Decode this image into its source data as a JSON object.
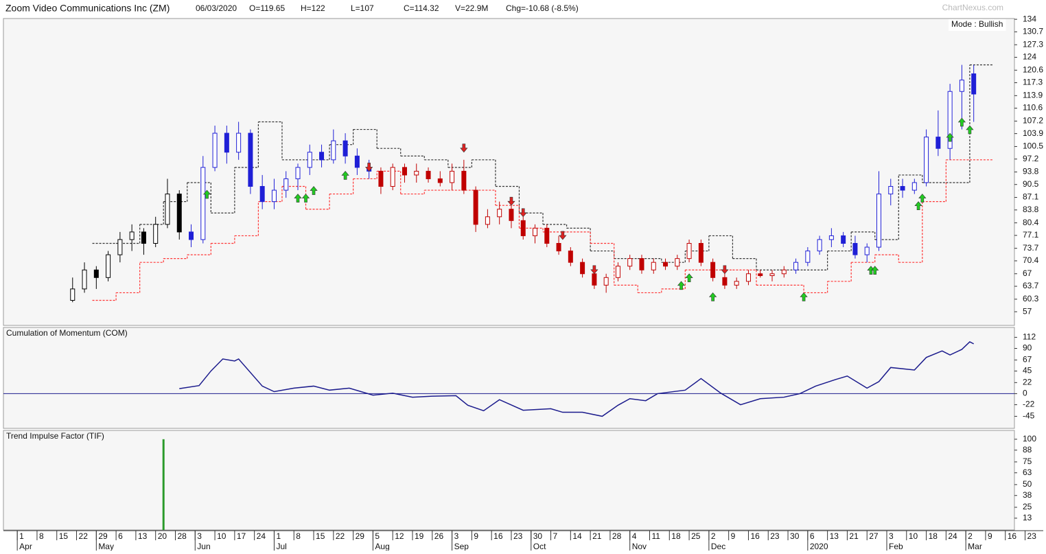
{
  "header": {
    "title": "Zoom Video Communications Inc (ZM)",
    "fields": [
      "06/03/2020",
      "O=119.65",
      "H=122",
      "L=107",
      "C=114.32",
      "V=22.9M",
      "Chg=-10.68 (-8.5%)"
    ],
    "watermark": "ChartNexus.com"
  },
  "x_axis": {
    "xlim": [
      -3.5,
      252.3
    ],
    "xticks": [
      {
        "value": 0,
        "label": "1"
      },
      {
        "value": 5,
        "label": "8"
      },
      {
        "value": 10,
        "label": "15"
      },
      {
        "value": 15,
        "label": "22"
      },
      {
        "value": 20,
        "label": "29"
      },
      {
        "value": 25,
        "label": "6"
      },
      {
        "value": 30,
        "label": "13"
      },
      {
        "value": 35,
        "label": "20"
      },
      {
        "value": 40,
        "label": "28"
      },
      {
        "value": 45,
        "label": "3"
      },
      {
        "value": 50,
        "label": "10"
      },
      {
        "value": 55,
        "label": "17"
      },
      {
        "value": 60,
        "label": "24"
      },
      {
        "value": 65,
        "label": "1"
      },
      {
        "value": 70,
        "label": "8"
      },
      {
        "value": 75,
        "label": "15"
      },
      {
        "value": 80,
        "label": "22"
      },
      {
        "value": 85,
        "label": "29"
      },
      {
        "value": 90,
        "label": "5"
      },
      {
        "value": 95,
        "label": "12"
      },
      {
        "value": 100,
        "label": "19"
      },
      {
        "value": 105,
        "label": "26"
      },
      {
        "value": 110,
        "label": "3"
      },
      {
        "value": 115,
        "label": "9"
      },
      {
        "value": 120,
        "label": "16"
      },
      {
        "value": 125,
        "label": "23"
      },
      {
        "value": 130,
        "label": "30"
      },
      {
        "value": 135,
        "label": "7"
      },
      {
        "value": 140,
        "label": "14"
      },
      {
        "value": 145,
        "label": "21"
      },
      {
        "value": 150,
        "label": "28"
      },
      {
        "value": 155,
        "label": "4"
      },
      {
        "value": 160,
        "label": "11"
      },
      {
        "value": 165,
        "label": "18"
      },
      {
        "value": 170,
        "label": "25"
      },
      {
        "value": 175,
        "label": "2"
      },
      {
        "value": 180,
        "label": "9"
      },
      {
        "value": 185,
        "label": "16"
      },
      {
        "value": 190,
        "label": "23"
      },
      {
        "value": 195,
        "label": "30"
      },
      {
        "value": 200,
        "label": "6"
      },
      {
        "value": 205,
        "label": "13"
      },
      {
        "value": 210,
        "label": "21"
      },
      {
        "value": 215,
        "label": "27"
      },
      {
        "value": 220,
        "label": "3"
      },
      {
        "value": 225,
        "label": "10"
      },
      {
        "value": 230,
        "label": "18"
      },
      {
        "value": 235,
        "label": "24"
      },
      {
        "value": 240,
        "label": "2"
      },
      {
        "value": 245,
        "label": "9"
      },
      {
        "value": 250,
        "label": "16"
      },
      {
        "value": 255,
        "label": "23"
      }
    ],
    "month_ticks": [
      {
        "value": 0,
        "label": "Apr"
      },
      {
        "value": 20,
        "label": "May"
      },
      {
        "value": 45,
        "label": "Jun"
      },
      {
        "value": 65,
        "label": "Jul"
      },
      {
        "value": 90,
        "label": "Aug"
      },
      {
        "value": 110,
        "label": "Sep"
      },
      {
        "value": 130,
        "label": "Oct"
      },
      {
        "value": 155,
        "label": "Nov"
      },
      {
        "value": 175,
        "label": "Dec"
      },
      {
        "value": 200,
        "label": "2020"
      },
      {
        "value": 220,
        "label": "Feb"
      },
      {
        "value": 240,
        "label": "Mar"
      }
    ]
  },
  "chart_data": [
    {
      "type": "candlestick",
      "mode_label": "Mode : Bullish",
      "ylim": [
        53.4,
        134.2
      ],
      "yticks": [
        134,
        130.7,
        127.3,
        124,
        120.6,
        117.3,
        113.9,
        110.6,
        107.2,
        103.9,
        100.5,
        97.2,
        93.8,
        90.5,
        87.1,
        83.8,
        80.4,
        77.1,
        73.7,
        70.4,
        67,
        63.7,
        60.3,
        57
      ],
      "series": [
        {
          "color": "#000000",
          "x": [
            14,
            17,
            20,
            23,
            26,
            29,
            32,
            35,
            38,
            41
          ],
          "open": [
            60,
            63,
            68,
            66,
            72,
            76,
            78,
            75,
            80,
            88
          ],
          "high": [
            66,
            70,
            69,
            73,
            78,
            80,
            79,
            82,
            92,
            89
          ],
          "low": [
            59.5,
            62,
            63,
            65,
            70,
            73,
            72,
            74,
            79,
            76
          ],
          "close": [
            63,
            68,
            66,
            72,
            76,
            78,
            75,
            80,
            88,
            78
          ]
        },
        {
          "color": "#1f1fd6",
          "x": [
            44,
            47,
            50,
            53,
            56,
            59,
            62,
            65,
            68,
            71,
            74,
            77,
            80,
            83,
            86,
            89,
            197,
            200,
            203,
            206,
            209,
            212,
            215,
            218,
            221,
            224,
            227,
            230,
            233,
            236,
            239,
            242
          ],
          "open": [
            78,
            76,
            95,
            104,
            99,
            104,
            90,
            86,
            89,
            92,
            95,
            99,
            97,
            102,
            98,
            95,
            68,
            70,
            73,
            76,
            77,
            75,
            72,
            74,
            88,
            90,
            89,
            91,
            103,
            100,
            115,
            119.65
          ],
          "high": [
            80,
            98,
            106,
            106,
            107,
            105,
            93,
            92,
            94,
            96,
            101,
            101,
            105,
            104,
            100,
            97,
            71,
            74,
            77,
            79,
            78,
            77,
            75,
            94,
            92,
            92,
            92,
            105,
            110,
            117,
            122,
            122
          ],
          "low": [
            74,
            75,
            94,
            96,
            97,
            88,
            84,
            84,
            87,
            89,
            93,
            95,
            96,
            96,
            93,
            92,
            67,
            69,
            72,
            74,
            74,
            71,
            70,
            73,
            85,
            87,
            88,
            90,
            98,
            97,
            105,
            107
          ],
          "close": [
            76,
            95,
            104,
            99,
            104,
            90,
            86,
            89,
            92,
            95,
            99,
            97,
            102,
            98,
            95,
            94,
            70,
            73,
            76,
            77,
            75,
            72,
            74,
            88,
            90,
            89,
            91,
            103,
            100,
            115,
            118,
            114.32
          ]
        },
        {
          "color": "#c00000",
          "x": [
            92,
            95,
            98,
            101,
            104,
            107,
            110,
            113,
            116,
            119,
            122,
            125,
            128,
            131,
            134,
            137,
            140,
            143,
            146,
            149,
            152,
            155,
            158,
            161,
            164,
            167,
            170,
            173,
            176,
            179,
            182,
            185,
            188,
            191,
            194
          ],
          "open": [
            94,
            90,
            95,
            93,
            94,
            92,
            91,
            94,
            89,
            80,
            82,
            84,
            81,
            77,
            79,
            75,
            73,
            70,
            67,
            64,
            66,
            69,
            71,
            68,
            70,
            69,
            71,
            75,
            70,
            66,
            64,
            65,
            67,
            66.5,
            67
          ],
          "high": [
            95,
            96,
            96,
            96,
            95,
            94,
            96,
            97,
            90,
            84,
            86,
            85,
            82,
            80,
            80,
            77,
            74,
            71,
            68,
            67,
            70,
            72,
            72,
            71,
            71,
            72,
            76,
            76,
            71,
            68,
            66,
            68,
            68,
            68,
            69
          ],
          "low": [
            88,
            89,
            91,
            91,
            91,
            90,
            89,
            88,
            78,
            79,
            80,
            79,
            76,
            75,
            74,
            72,
            69,
            66,
            63,
            62,
            65,
            68,
            67,
            67,
            68,
            68,
            70,
            69,
            65,
            63,
            63,
            64,
            66,
            65,
            66
          ],
          "close": [
            90,
            95,
            93,
            94,
            92,
            91,
            94,
            89,
            80,
            82,
            84,
            81,
            77,
            79,
            75,
            73,
            70,
            67,
            64,
            66,
            69,
            71,
            68,
            70,
            69,
            71,
            75,
            70,
            66,
            64,
            65,
            67,
            66.5,
            67,
            68
          ]
        }
      ],
      "bands": [
        {
          "color": "#333333",
          "x": [
            19,
            25,
            31,
            37,
            43,
            49,
            55,
            61,
            67,
            73,
            79,
            85,
            91,
            97,
            103,
            109,
            115,
            121,
            127,
            133,
            139,
            145,
            151,
            157,
            163,
            169,
            175,
            181,
            187,
            193,
            199,
            205,
            211,
            217,
            223,
            229,
            235,
            241
          ],
          "values": [
            75,
            75,
            80,
            86,
            91,
            83,
            95,
            107,
            97,
            97,
            101,
            105,
            100,
            98,
            97,
            95,
            97,
            90,
            83,
            80,
            79,
            73,
            71,
            71,
            70,
            73,
            77,
            71,
            68,
            68,
            68,
            73,
            78,
            76,
            93,
            91,
            91,
            122
          ]
        },
        {
          "color": "#ff3333",
          "x": [
            19,
            25,
            31,
            37,
            43,
            49,
            55,
            61,
            67,
            73,
            79,
            85,
            91,
            97,
            103,
            109,
            115,
            121,
            127,
            133,
            139,
            145,
            151,
            157,
            163,
            169,
            175,
            181,
            187,
            193,
            199,
            205,
            211,
            217,
            223,
            229,
            235,
            241
          ],
          "values": [
            60,
            62,
            70,
            71,
            72,
            75,
            77,
            86,
            90,
            84,
            88,
            92,
            94,
            88,
            89,
            89,
            89,
            85,
            79,
            78,
            78,
            75,
            64,
            62,
            63,
            68,
            68,
            68,
            64,
            64,
            62,
            65,
            70,
            72,
            70,
            86,
            97,
            97
          ]
        }
      ],
      "signals": [
        {
          "direction": "up",
          "color": "#22cc22",
          "x": [
            48,
            71,
            73,
            75,
            83,
            168,
            170,
            176,
            199,
            216,
            217,
            228,
            229,
            236,
            239,
            241
          ],
          "values": [
            89,
            88,
            88,
            90,
            94,
            65,
            67,
            62,
            62,
            69,
            69,
            86,
            88,
            104,
            108,
            106
          ]
        },
        {
          "direction": "down",
          "color": "#dd2222",
          "x": [
            89,
            113,
            125,
            128,
            138,
            146,
            179
          ],
          "values": [
            94,
            99,
            85,
            82,
            76,
            67,
            67
          ]
        }
      ]
    },
    {
      "type": "line",
      "title": "Cumulation of Momentum (COM)",
      "ylim": [
        -69,
        131.6
      ],
      "yticks": [
        112,
        90,
        67,
        45,
        22,
        0,
        -22,
        -45
      ],
      "reference_line": 0,
      "series": [
        {
          "color": "#1a1a8c",
          "x": [
            41,
            46,
            49,
            52,
            55,
            56,
            62,
            65,
            70,
            75,
            79,
            84,
            90,
            95,
            100,
            105,
            111,
            114,
            118,
            122,
            128,
            135,
            138,
            143,
            148,
            152,
            155,
            159,
            162,
            169,
            173,
            178,
            183,
            188,
            194,
            198,
            202,
            207,
            210,
            215,
            218,
            221,
            227,
            230,
            234,
            236,
            239,
            241,
            242
          ],
          "values": [
            10,
            16,
            45,
            69,
            65,
            69,
            15,
            4,
            11,
            15,
            7,
            11,
            -3,
            1,
            -7,
            -5,
            -4,
            -23,
            -34,
            -12,
            -33,
            -30,
            -37,
            -37,
            -45,
            -23,
            -10,
            -14,
            0,
            7,
            30,
            1,
            -22,
            -10,
            -7,
            0,
            15,
            28,
            35,
            11,
            24,
            52,
            47,
            72,
            85,
            77,
            88,
            103,
            99
          ]
        }
      ]
    },
    {
      "type": "bar",
      "title": "Trend Impulse Factor (TIF)",
      "ylim": [
        0,
        109.7
      ],
      "yticks": [
        100,
        88,
        75,
        63,
        50,
        38,
        25,
        13
      ],
      "series": [
        {
          "color": "#2a9a2a",
          "x": [
            37
          ],
          "values": [
            100
          ]
        }
      ]
    }
  ]
}
